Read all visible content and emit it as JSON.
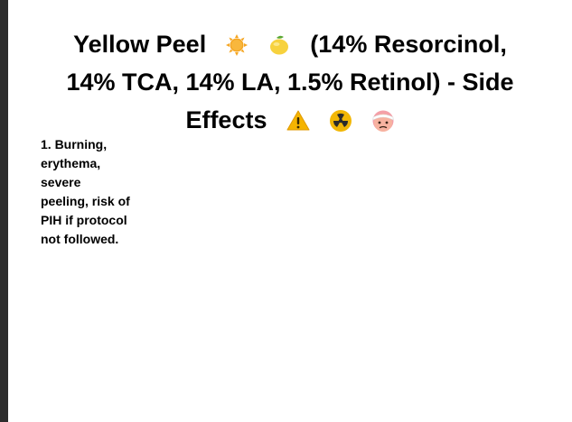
{
  "title": {
    "part1": "Yellow Peel",
    "part2": "(14% Resorcinol,",
    "line2": "14% TCA, 14% LA, 1.5% Retinol) - Side",
    "line3": "Effects",
    "icons": [
      "sun-icon",
      "lemon-icon",
      "warning-icon",
      "radioactive-icon",
      "bandaged-face-icon"
    ]
  },
  "side_effects": [
    "1. Burning, erythema, severe peeling, risk of PIH if protocol not followed."
  ],
  "colors": {
    "sun": "#f5a623",
    "lemon": "#f7d23e",
    "warning": "#f5b400",
    "radioactive": "#f2b705",
    "text": "#000000"
  }
}
